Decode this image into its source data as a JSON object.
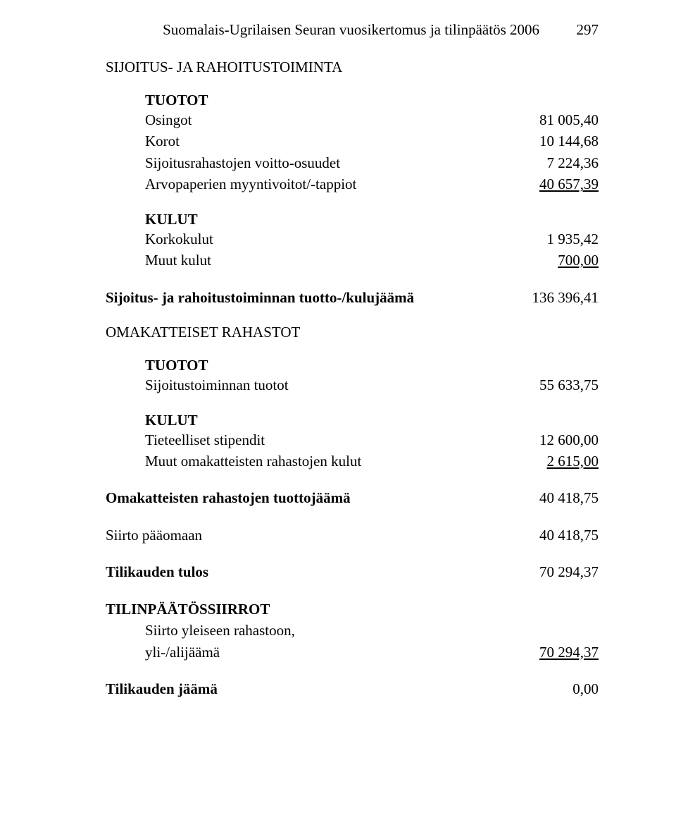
{
  "header": {
    "title": "Suomalais-Ugrilaisen Seuran vuosikertomus ja tilinpäätös 2006",
    "page_number": "297"
  },
  "sections": {
    "sijoitus_rahoitus": {
      "title": "SIJOITUS- JA RAHOITUSTOIMINTA",
      "tuotot_label": "TUOTOT",
      "tuotot": {
        "osingot_label": "Osingot",
        "osingot_value": "81 005,40",
        "korot_label": "Korot",
        "korot_value": "10 144,68",
        "sij_voitto_label": "Sijoitusrahastojen voitto-osuudet",
        "sij_voitto_value": "7 224,36",
        "arvopap_label": "Arvopaperien myyntivoitot/-tappiot",
        "arvopap_value": "40 657,39"
      },
      "kulut_label": "KULUT",
      "kulut": {
        "korkokulut_label": "Korkokulut",
        "korkokulut_value": "1 935,42",
        "muut_label": "Muut kulut",
        "muut_value": "700,00"
      },
      "jaama_label": "Sijoitus- ja rahoitustoiminnan tuotto-/kulujäämä",
      "jaama_value": "136 396,41"
    },
    "omakatteiset": {
      "title": "OMAKATTEISET RAHASTOT",
      "tuotot_label": "TUOTOT",
      "tuotot": {
        "sij_tuotot_label": "Sijoitustoiminnan tuotot",
        "sij_tuotot_value": "55 633,75"
      },
      "kulut_label": "KULUT",
      "kulut": {
        "stipendit_label": "Tieteelliset stipendit",
        "stipendit_value": "12 600,00",
        "muut_oma_label": "Muut omakatteisten rahastojen kulut",
        "muut_oma_value": "2 615,00"
      },
      "jaama_label": "Omakatteisten rahastojen tuottojäämä",
      "jaama_value": "40 418,75"
    },
    "siirto_paaomaan": {
      "label": "Siirto pääomaan",
      "value": "40 418,75"
    },
    "tilikauden_tulos": {
      "label": "Tilikauden tulos",
      "value": "70 294,37"
    },
    "tilinpaatossiirrot": {
      "title": "TILINPÄÄTÖSSIIRROT",
      "siirto_yleiseen_label": "Siirto yleiseen rahastoon,",
      "yli_ali_label": "yli-/alijäämä",
      "value": "70 294,37"
    },
    "tilikauden_jaama": {
      "label": "Tilikauden jäämä",
      "value": "0,00"
    }
  }
}
